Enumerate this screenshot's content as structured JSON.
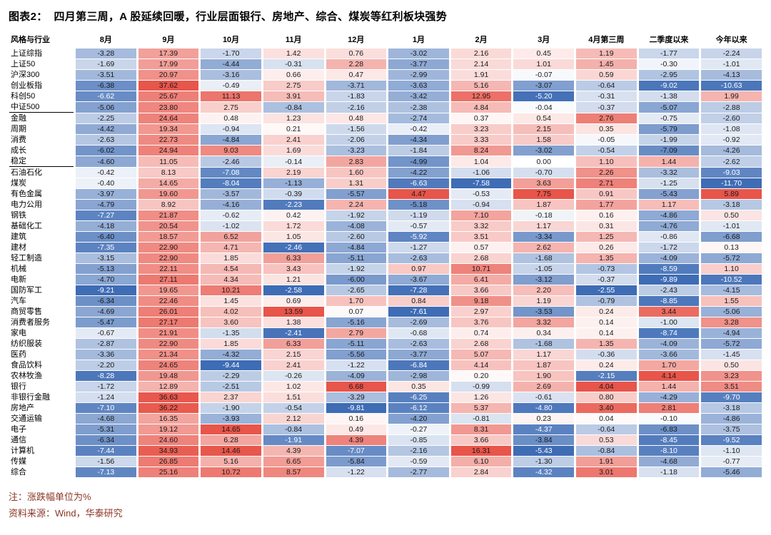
{
  "title": "图表2：  四月第三周，A 股延续回暖，行业层面银行、房地产、综合、煤炭等红利板块强势",
  "colors": {
    "positive": "#e8554a",
    "negative": "#3e6cb5",
    "note_text": "#8b3626",
    "cell_text_dark": "#1a1a1a",
    "cell_text_light": "#ffffff"
  },
  "footer": {
    "note": "注：涨跌幅单位为%",
    "source": "资料来源：Wind，华泰研究"
  },
  "chart_data": {
    "type": "heatmap",
    "title": "图表2：四月第三周，A股延续回暖，行业层面银行、房地产、综合、煤炭等红利板块强势",
    "unit": "%",
    "legend_position": "none",
    "color_scale": "per-column, red = positive, blue = negative, white = 0",
    "columns": [
      "风格与行业",
      "8月",
      "9月",
      "10月",
      "11月",
      "12月",
      "1月",
      "2月",
      "3月",
      "4月第三周",
      "二季度以来",
      "今年以来"
    ],
    "rows": [
      {
        "label": "上证综指",
        "values": [
          -3.28,
          17.39,
          -1.7,
          1.42,
          0.76,
          -3.02,
          2.16,
          0.45,
          1.19,
          -1.77,
          -2.24
        ],
        "group_end": false
      },
      {
        "label": "上证50",
        "values": [
          -1.69,
          17.99,
          -4.44,
          -0.31,
          2.28,
          -3.77,
          2.14,
          1.01,
          1.45,
          -0.3,
          -1.01
        ],
        "group_end": false
      },
      {
        "label": "沪深300",
        "values": [
          -3.51,
          20.97,
          -3.16,
          0.66,
          0.47,
          -2.99,
          1.91,
          -0.07,
          0.59,
          -2.95,
          -4.13
        ],
        "group_end": false
      },
      {
        "label": "创业板指",
        "values": [
          -6.38,
          37.62,
          -0.49,
          2.75,
          -3.71,
          -3.63,
          5.16,
          -3.07,
          -0.64,
          -9.02,
          -10.63
        ],
        "group_end": false
      },
      {
        "label": "科创50",
        "values": [
          -6.62,
          25.67,
          11.13,
          3.91,
          -1.83,
          -3.42,
          12.95,
          -5.2,
          -0.31,
          -1.38,
          1.99
        ],
        "group_end": false
      },
      {
        "label": "中证500",
        "values": [
          -5.06,
          23.8,
          2.75,
          -0.84,
          -2.16,
          -2.38,
          4.84,
          -0.04,
          -0.37,
          -5.07,
          -2.88
        ],
        "group_end": true
      },
      {
        "label": "金融",
        "values": [
          -2.25,
          24.64,
          0.48,
          1.23,
          0.48,
          -2.74,
          0.37,
          0.54,
          2.76,
          -0.75,
          -2.6
        ],
        "group_end": false
      },
      {
        "label": "周期",
        "values": [
          -4.42,
          19.34,
          -0.94,
          0.21,
          -1.56,
          -0.42,
          3.23,
          2.15,
          0.35,
          -5.79,
          -1.08
        ],
        "group_end": false
      },
      {
        "label": "消费",
        "values": [
          -2.63,
          22.73,
          -4.84,
          2.41,
          -2.06,
          -4.34,
          3.33,
          1.58,
          -0.05,
          -1.99,
          -0.92
        ],
        "group_end": false
      },
      {
        "label": "成长",
        "values": [
          -6.02,
          24.94,
          9.03,
          1.69,
          -3.23,
          -1.84,
          8.24,
          -3.02,
          -0.54,
          -7.09,
          -4.26
        ],
        "group_end": false
      },
      {
        "label": "稳定",
        "values": [
          -4.6,
          11.05,
          -2.46,
          -0.14,
          2.83,
          -4.99,
          1.04,
          0.0,
          1.1,
          1.44,
          -2.62
        ],
        "group_end": true
      },
      {
        "label": "石油石化",
        "values": [
          -0.42,
          8.13,
          -7.08,
          2.19,
          1.6,
          -4.22,
          -1.06,
          -0.7,
          2.26,
          -3.32,
          -9.03
        ],
        "group_end": false
      },
      {
        "label": "煤炭",
        "values": [
          -0.4,
          14.65,
          -8.04,
          -1.13,
          1.31,
          -6.63,
          -7.58,
          3.63,
          2.71,
          -1.25,
          -11.7
        ],
        "group_end": false
      },
      {
        "label": "有色金属",
        "values": [
          -3.97,
          19.6,
          -3.57,
          -0.39,
          -5.57,
          4.47,
          -0.53,
          7.75,
          0.91,
          -5.43,
          5.89
        ],
        "group_end": false
      },
      {
        "label": "电力公用",
        "values": [
          -4.79,
          8.92,
          -4.16,
          -2.23,
          2.24,
          -5.18,
          -0.94,
          1.87,
          1.77,
          1.17,
          -3.18
        ],
        "group_end": false
      },
      {
        "label": "钢铁",
        "values": [
          -7.27,
          21.87,
          -0.62,
          0.42,
          -1.92,
          -1.19,
          7.1,
          -0.18,
          0.16,
          -4.86,
          0.5
        ],
        "group_end": false
      },
      {
        "label": "基础化工",
        "values": [
          -4.18,
          20.54,
          -1.02,
          1.72,
          -4.08,
          -0.57,
          3.32,
          1.17,
          0.31,
          -4.76,
          -1.01
        ],
        "group_end": false
      },
      {
        "label": "建筑",
        "values": [
          -6.4,
          18.57,
          6.52,
          1.05,
          -2.6,
          -5.92,
          3.51,
          -3.34,
          1.25,
          -0.86,
          -6.68
        ],
        "group_end": false
      },
      {
        "label": "建材",
        "values": [
          -7.35,
          22.9,
          4.71,
          -2.46,
          -4.84,
          -1.27,
          0.57,
          2.62,
          0.26,
          -1.72,
          0.13
        ],
        "group_end": false
      },
      {
        "label": "轻工制造",
        "values": [
          -3.15,
          22.9,
          1.85,
          6.33,
          -5.11,
          -2.63,
          2.68,
          -1.68,
          1.35,
          -4.09,
          -5.72
        ],
        "group_end": false
      },
      {
        "label": "机械",
        "values": [
          -5.13,
          22.11,
          4.54,
          3.43,
          -1.92,
          0.97,
          10.71,
          -1.05,
          -0.73,
          -8.59,
          1.1
        ],
        "group_end": false
      },
      {
        "label": "电新",
        "values": [
          -4.7,
          27.11,
          4.34,
          1.21,
          -6.0,
          -3.67,
          6.41,
          -3.12,
          -0.37,
          -9.89,
          -10.52
        ],
        "group_end": false
      },
      {
        "label": "国防军工",
        "values": [
          -9.21,
          19.65,
          10.21,
          -2.58,
          -2.65,
          -7.28,
          3.66,
          2.2,
          -2.55,
          -2.43,
          -4.15
        ],
        "group_end": false
      },
      {
        "label": "汽车",
        "values": [
          -6.34,
          22.46,
          1.45,
          0.69,
          1.7,
          0.84,
          9.18,
          1.19,
          -0.79,
          -8.85,
          1.55
        ],
        "group_end": false
      },
      {
        "label": "商贸零售",
        "values": [
          -4.69,
          26.01,
          4.02,
          13.59,
          0.07,
          -7.61,
          2.97,
          -3.53,
          0.24,
          3.44,
          -5.06
        ],
        "group_end": false
      },
      {
        "label": "消费者服务",
        "values": [
          -5.47,
          27.17,
          3.6,
          1.38,
          -5.16,
          -2.69,
          3.76,
          3.32,
          0.14,
          -1.0,
          3.28
        ],
        "group_end": false
      },
      {
        "label": "家电",
        "values": [
          -0.67,
          21.91,
          -1.35,
          -2.41,
          2.79,
          -0.68,
          0.74,
          0.34,
          0.14,
          -8.74,
          -4.94
        ],
        "group_end": false
      },
      {
        "label": "纺织服装",
        "values": [
          -2.87,
          22.9,
          1.85,
          6.33,
          -5.11,
          -2.63,
          2.68,
          -1.68,
          1.35,
          -4.09,
          -5.72
        ],
        "group_end": false
      },
      {
        "label": "医药",
        "values": [
          -3.36,
          21.34,
          -4.32,
          2.15,
          -5.56,
          -3.77,
          5.07,
          1.17,
          -0.36,
          -3.66,
          -1.45
        ],
        "group_end": false
      },
      {
        "label": "食品饮料",
        "values": [
          -2.2,
          24.65,
          -9.44,
          2.41,
          -1.22,
          -6.84,
          4.14,
          1.87,
          0.24,
          1.7,
          0.5
        ],
        "group_end": false
      },
      {
        "label": "农林牧渔",
        "values": [
          -8.28,
          19.48,
          -2.29,
          -0.26,
          -4.09,
          -2.98,
          0.2,
          1.9,
          -2.15,
          4.14,
          3.23
        ],
        "group_end": false
      },
      {
        "label": "银行",
        "values": [
          -1.72,
          12.89,
          -2.51,
          1.02,
          6.68,
          0.35,
          -0.99,
          2.69,
          4.04,
          1.44,
          3.51
        ],
        "group_end": false
      },
      {
        "label": "非银行金融",
        "values": [
          -1.24,
          36.63,
          2.37,
          1.51,
          -3.29,
          -6.25,
          1.26,
          -0.61,
          0.8,
          -4.29,
          -9.7
        ],
        "group_end": false
      },
      {
        "label": "房地产",
        "values": [
          -7.1,
          36.22,
          -1.9,
          -0.54,
          -9.81,
          -6.12,
          5.37,
          -4.8,
          3.4,
          2.81,
          -3.18
        ],
        "group_end": false
      },
      {
        "label": "交通运输",
        "values": [
          -4.68,
          16.35,
          -3.93,
          2.12,
          0.16,
          -4.2,
          -0.81,
          0.23,
          0.04,
          -0.1,
          -4.86
        ],
        "group_end": false
      },
      {
        "label": "电子",
        "values": [
          -5.31,
          19.12,
          14.65,
          -0.84,
          0.49,
          -0.27,
          8.31,
          -4.37,
          -0.64,
          -6.83,
          -3.75
        ],
        "group_end": false
      },
      {
        "label": "通信",
        "values": [
          -6.34,
          24.6,
          6.28,
          -1.91,
          4.39,
          -0.85,
          3.66,
          -3.84,
          0.53,
          -8.45,
          -9.52
        ],
        "group_end": false
      },
      {
        "label": "计算机",
        "values": [
          -7.44,
          34.93,
          14.46,
          4.39,
          -7.07,
          -2.16,
          16.31,
          -5.43,
          -0.84,
          -8.1,
          -1.1
        ],
        "group_end": false
      },
      {
        "label": "传媒",
        "values": [
          -1.56,
          26.85,
          5.16,
          6.65,
          -5.84,
          -0.59,
          6.1,
          -1.3,
          1.91,
          -4.68,
          -0.77
        ],
        "group_end": false
      },
      {
        "label": "综合",
        "values": [
          -7.13,
          25.16,
          10.72,
          8.57,
          -1.22,
          -2.77,
          2.84,
          -4.32,
          3.01,
          -1.18,
          -5.46
        ],
        "group_end": false
      }
    ]
  }
}
